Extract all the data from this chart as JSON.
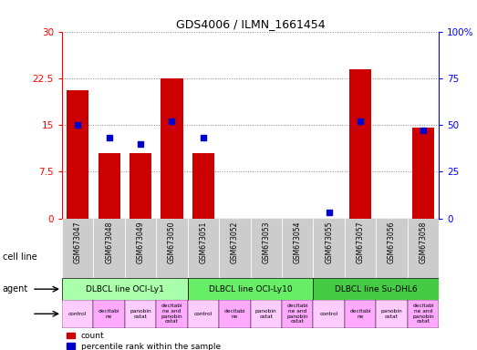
{
  "title": "GDS4006 / ILMN_1661454",
  "samples": [
    "GSM673047",
    "GSM673048",
    "GSM673049",
    "GSM673050",
    "GSM673051",
    "GSM673052",
    "GSM673053",
    "GSM673054",
    "GSM673055",
    "GSM673057",
    "GSM673056",
    "GSM673058"
  ],
  "counts": [
    20.5,
    10.5,
    10.5,
    22.5,
    10.5,
    0,
    0,
    0,
    0,
    24.0,
    0,
    14.5
  ],
  "percentiles": [
    50,
    43,
    40,
    52,
    43,
    0,
    0,
    0,
    3,
    52,
    0,
    47
  ],
  "ylim_left": [
    0,
    30
  ],
  "ylim_right": [
    0,
    100
  ],
  "yticks_left": [
    0,
    7.5,
    15,
    22.5,
    30
  ],
  "yticks_right": [
    0,
    25,
    50,
    75,
    100
  ],
  "ytick_labels_left": [
    "0",
    "7.5",
    "15",
    "22.5",
    "30"
  ],
  "ytick_labels_right": [
    "0",
    "25",
    "50",
    "75",
    "100%"
  ],
  "bar_color": "#cc0000",
  "dot_color": "#0000cc",
  "cell_groups": [
    {
      "label": "DLBCL line OCI-Ly1",
      "start": 0,
      "end": 4,
      "color": "#aaffaa"
    },
    {
      "label": "DLBCL line OCI-Ly10",
      "start": 4,
      "end": 8,
      "color": "#66ee66"
    },
    {
      "label": "DLBCL line Su-DHL6",
      "start": 8,
      "end": 12,
      "color": "#44cc44"
    }
  ],
  "agents": [
    "control",
    "decitabi\nne",
    "panobin\nostat",
    "decitabi\nne and\npanobin\nostat",
    "control",
    "decitabi\nne",
    "panobin\nostat",
    "decitabi\nne and\npanobin\nostat",
    "control",
    "decitabi\nne",
    "panobin\nostat",
    "decitabi\nne and\npanobin\nostat"
  ],
  "agent_colors": [
    "#ffccff",
    "#ffaaff",
    "#ffccff",
    "#ffaaff",
    "#ffccff",
    "#ffaaff",
    "#ffccff",
    "#ffaaff",
    "#ffccff",
    "#ffaaff",
    "#ffccff",
    "#ffaaff"
  ],
  "xtick_bg": "#dddddd",
  "grid_color": "#888888",
  "plot_bg_color": "#ffffff"
}
